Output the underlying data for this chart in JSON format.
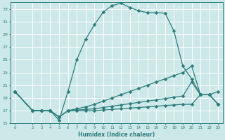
{
  "xlabel": "Humidex (Indice chaleur)",
  "bg_color": "#cde8e8",
  "grid_color": "#ffffff",
  "line_color": "#2e7d7d",
  "xlim": [
    -0.5,
    23.5
  ],
  "ylim": [
    15,
    34
  ],
  "xticks": [
    0,
    2,
    3,
    4,
    5,
    6,
    7,
    8,
    9,
    10,
    11,
    12,
    13,
    14,
    15,
    16,
    17,
    18,
    19,
    20,
    21,
    22,
    23
  ],
  "yticks": [
    15,
    17,
    19,
    21,
    23,
    25,
    27,
    29,
    31,
    33
  ],
  "line1_x": [
    0,
    2,
    3,
    4,
    5,
    6,
    7,
    8,
    9,
    10,
    11,
    12,
    13,
    14,
    15,
    16,
    17,
    18,
    19,
    20,
    21,
    22,
    23
  ],
  "line1_y": [
    20.0,
    17.0,
    17.0,
    17.0,
    15.5,
    20.0,
    25.0,
    28.2,
    30.5,
    32.5,
    33.5,
    33.9,
    33.2,
    32.7,
    32.4,
    32.4,
    32.3,
    29.5,
    24.0,
    22.0,
    19.5,
    19.5,
    20.0
  ],
  "line2_x": [
    0,
    2,
    3,
    4,
    5,
    6,
    7,
    8,
    9,
    10,
    11,
    12,
    13,
    14,
    15,
    16,
    17,
    18,
    19,
    20,
    21,
    22,
    23
  ],
  "line2_y": [
    20.0,
    17.0,
    17.0,
    17.0,
    16.0,
    17.0,
    17.3,
    17.6,
    18.0,
    18.5,
    19.0,
    19.5,
    20.0,
    20.5,
    21.0,
    21.5,
    22.0,
    22.5,
    23.0,
    24.0,
    19.5,
    19.5,
    18.0
  ],
  "line3_x": [
    0,
    2,
    3,
    4,
    5,
    6,
    7,
    8,
    9,
    10,
    11,
    12,
    13,
    14,
    15,
    16,
    17,
    18,
    19,
    20,
    21,
    22,
    23
  ],
  "line3_y": [
    20.0,
    17.0,
    17.0,
    17.0,
    16.0,
    17.0,
    17.1,
    17.2,
    17.3,
    17.5,
    17.7,
    17.9,
    18.1,
    18.3,
    18.5,
    18.7,
    18.9,
    19.1,
    19.3,
    21.5,
    19.5,
    19.5,
    18.0
  ],
  "line4_x": [
    0,
    2,
    3,
    4,
    5,
    6,
    7,
    8,
    9,
    10,
    11,
    12,
    13,
    14,
    15,
    16,
    17,
    18,
    19,
    20,
    21,
    22,
    23
  ],
  "line4_y": [
    20.0,
    17.0,
    17.0,
    17.0,
    16.0,
    17.0,
    17.0,
    17.0,
    17.0,
    17.1,
    17.2,
    17.3,
    17.4,
    17.5,
    17.6,
    17.7,
    17.8,
    17.9,
    18.0,
    18.0,
    19.5,
    19.5,
    18.0
  ]
}
